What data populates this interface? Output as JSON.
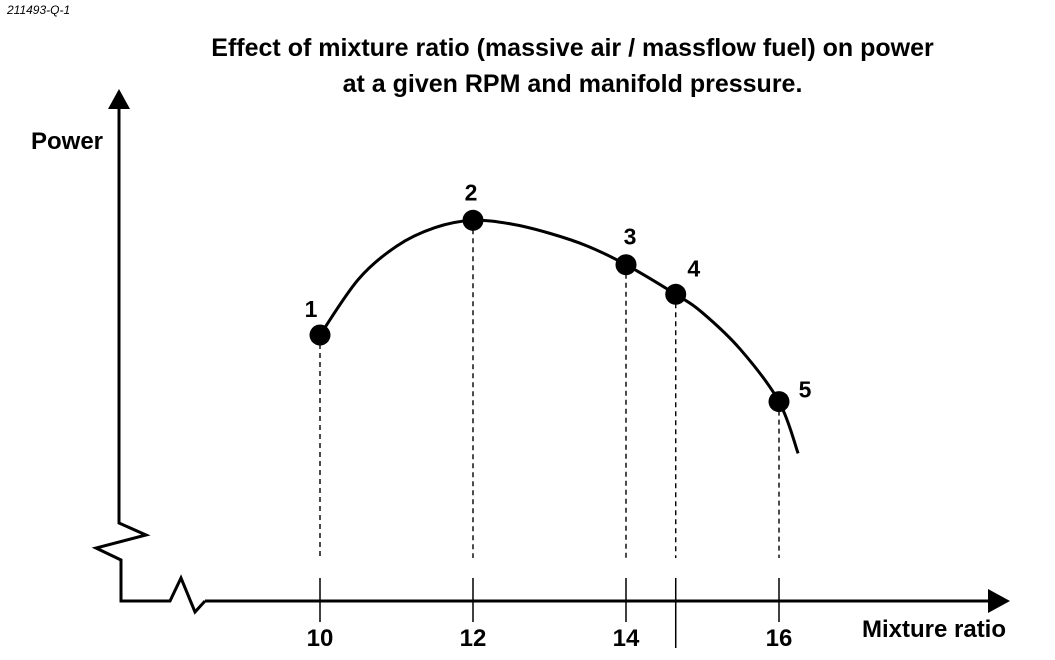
{
  "ref_id": "211493-Q-1",
  "title": {
    "line1": "Effect of mixture ratio (massive air / massflow fuel) on power",
    "line2": "at a given RPM and manifold pressure."
  },
  "chart_data": {
    "type": "line",
    "title": "Effect of mixture ratio (massive air / massflow fuel) on power at a given RPM and manifold pressure.",
    "xlabel": "Mixture ratio",
    "ylabel": "Power",
    "x_ticks": [
      10,
      12,
      14,
      16
    ],
    "unlabeled_tick_x": 14.65,
    "xlim": [
      8.6,
      17.2
    ],
    "ylim": [
      0,
      100
    ],
    "y_values_note": "no numeric y scale shown; values are relative",
    "curve": [
      {
        "x": 10.0,
        "y": 60
      },
      {
        "x": 10.5,
        "y": 75
      },
      {
        "x": 11.0,
        "y": 84
      },
      {
        "x": 11.5,
        "y": 89
      },
      {
        "x": 12.0,
        "y": 91
      },
      {
        "x": 12.5,
        "y": 90
      },
      {
        "x": 13.0,
        "y": 87.5
      },
      {
        "x": 13.5,
        "y": 84
      },
      {
        "x": 14.0,
        "y": 79
      },
      {
        "x": 14.65,
        "y": 71
      },
      {
        "x": 15.0,
        "y": 66
      },
      {
        "x": 15.5,
        "y": 56
      },
      {
        "x": 16.0,
        "y": 42
      },
      {
        "x": 16.25,
        "y": 28
      }
    ],
    "points": [
      {
        "label": "1",
        "x": 10.0,
        "y": 60
      },
      {
        "label": "2",
        "x": 12.0,
        "y": 91
      },
      {
        "label": "3",
        "x": 14.0,
        "y": 79
      },
      {
        "label": "4",
        "x": 14.65,
        "y": 71
      },
      {
        "label": "5",
        "x": 16.0,
        "y": 42
      }
    ]
  }
}
